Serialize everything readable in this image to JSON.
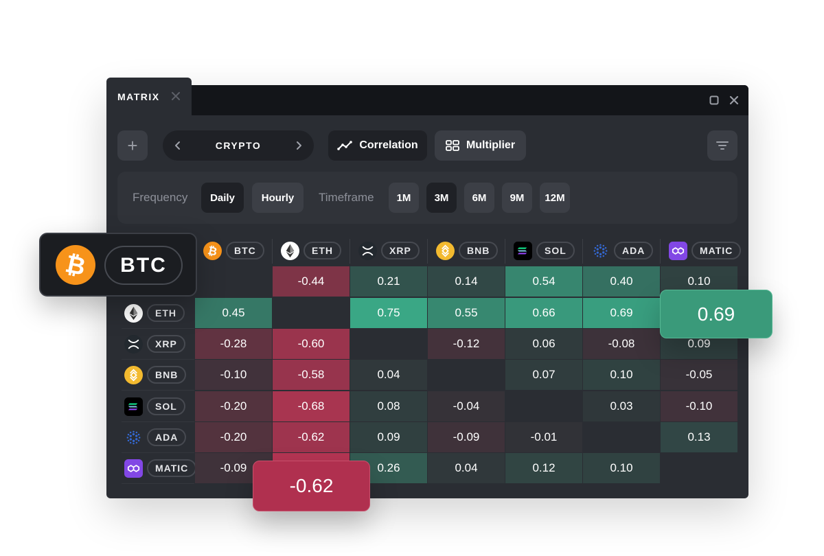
{
  "window": {
    "tab_title": "MATRIX"
  },
  "toolbar": {
    "add_label": "+",
    "asset_class": "CRYPTO",
    "correlation_label": "Correlation",
    "multiplier_label": "Multiplier"
  },
  "frequency": {
    "label": "Frequency",
    "options": [
      "Daily",
      "Hourly"
    ],
    "selected": "Daily"
  },
  "timeframe": {
    "label": "Timeframe",
    "options": [
      "1M",
      "3M",
      "6M",
      "9M",
      "12M"
    ],
    "selected": "3M"
  },
  "coins": [
    {
      "symbol": "BTC",
      "color": "#f7931a"
    },
    {
      "symbol": "ETH",
      "color": "#ffffff"
    },
    {
      "symbol": "XRP",
      "color": "#23292f"
    },
    {
      "symbol": "BNB",
      "color": "#f3ba2f"
    },
    {
      "symbol": "SOL",
      "color": "#000000"
    },
    {
      "symbol": "ADA",
      "color": "#0033ad"
    },
    {
      "symbol": "MATIC",
      "color": "#8247e5"
    }
  ],
  "matrix": {
    "rows": [
      "BTC",
      "ETH",
      "XRP",
      "BNB",
      "SOL",
      "ADA",
      "MATIC"
    ],
    "cols": [
      "BTC",
      "ETH",
      "XRP",
      "BNB",
      "SOL",
      "ADA",
      "MATIC"
    ],
    "values": [
      [
        null,
        "-0.44",
        "0.21",
        "0.14",
        "0.54",
        "0.40",
        "0.10"
      ],
      [
        "0.45",
        null,
        "0.75",
        "0.55",
        "0.66",
        "0.69",
        ""
      ],
      [
        "-0.28",
        "-0.60",
        null,
        "-0.12",
        "0.06",
        "-0.08",
        "0.09"
      ],
      [
        "-0.10",
        "-0.58",
        "0.04",
        null,
        "0.07",
        "0.10",
        "-0.05"
      ],
      [
        "-0.20",
        "-0.68",
        "0.08",
        "-0.04",
        null,
        "0.03",
        "-0.10"
      ],
      [
        "-0.20",
        "-0.62",
        "0.09",
        "-0.09",
        "-0.01",
        null,
        "0.13"
      ],
      [
        "-0.09",
        "",
        "0.26",
        "0.04",
        "0.12",
        "0.10",
        null
      ]
    ]
  },
  "highlights": {
    "selected_coin": "BTC",
    "positive_value": "0.69",
    "negative_value": "-0.62"
  },
  "colors": {
    "positive_max": "#3aa785",
    "negative_max": "#b53553",
    "neutral": "#2f3237",
    "diagonal": "#2a2d33"
  }
}
